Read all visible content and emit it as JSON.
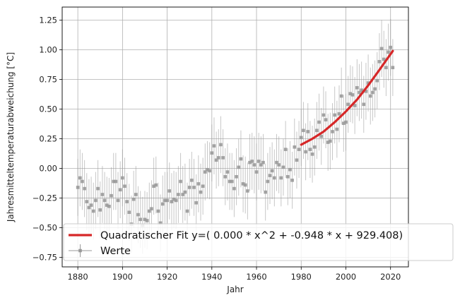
{
  "chart_data": {
    "type": "line",
    "title": "",
    "xlabel": "Jahr",
    "ylabel": "Jahresmitteltemperaturabweichung [°C]",
    "xlim": [
      1873,
      2028
    ],
    "ylim": [
      -0.83,
      1.36
    ],
    "xticks": [
      1880,
      1900,
      1920,
      1940,
      1960,
      1980,
      2000,
      2020
    ],
    "xtick_labels": [
      "1880",
      "1900",
      "1920",
      "1940",
      "1960",
      "1980",
      "2000",
      "2020"
    ],
    "yticks": [
      -0.75,
      -0.5,
      -0.25,
      0.0,
      0.25,
      0.5,
      0.75,
      1.0,
      1.25
    ],
    "ytick_labels": [
      "−0.75",
      "−0.50",
      "−0.25",
      "0.00",
      "0.25",
      "0.50",
      "0.75",
      "1.00",
      "1.25"
    ],
    "grid": true,
    "legend_position": "lower-right",
    "series": [
      {
        "name": "Werte",
        "kind": "errorbar",
        "color": "#999999",
        "error": 0.24,
        "x": [
          1880,
          1881,
          1882,
          1883,
          1884,
          1885,
          1886,
          1887,
          1888,
          1889,
          1890,
          1891,
          1892,
          1893,
          1894,
          1895,
          1896,
          1897,
          1898,
          1899,
          1900,
          1901,
          1902,
          1903,
          1904,
          1905,
          1906,
          1907,
          1908,
          1909,
          1910,
          1911,
          1912,
          1913,
          1914,
          1915,
          1916,
          1917,
          1918,
          1919,
          1920,
          1921,
          1922,
          1923,
          1924,
          1925,
          1926,
          1927,
          1928,
          1929,
          1930,
          1931,
          1932,
          1933,
          1934,
          1935,
          1936,
          1937,
          1938,
          1939,
          1940,
          1941,
          1942,
          1943,
          1944,
          1945,
          1946,
          1947,
          1948,
          1949,
          1950,
          1951,
          1952,
          1953,
          1954,
          1955,
          1956,
          1957,
          1958,
          1959,
          1960,
          1961,
          1962,
          1963,
          1964,
          1965,
          1966,
          1967,
          1968,
          1969,
          1970,
          1971,
          1972,
          1973,
          1974,
          1975,
          1976,
          1977,
          1978,
          1979,
          1980,
          1981,
          1982,
          1983,
          1984,
          1985,
          1986,
          1987,
          1988,
          1989,
          1990,
          1991,
          1992,
          1993,
          1994,
          1995,
          1996,
          1997,
          1998,
          1999,
          2000,
          2001,
          2002,
          2003,
          2004,
          2005,
          2006,
          2007,
          2008,
          2009,
          2010,
          2011,
          2012,
          2013,
          2014,
          2015,
          2016,
          2017,
          2018,
          2019,
          2020,
          2021
        ],
        "y": [
          -0.16,
          -0.08,
          -0.11,
          -0.17,
          -0.28,
          -0.33,
          -0.31,
          -0.36,
          -0.27,
          -0.17,
          -0.35,
          -0.22,
          -0.27,
          -0.31,
          -0.32,
          -0.23,
          -0.11,
          -0.11,
          -0.27,
          -0.18,
          -0.08,
          -0.15,
          -0.28,
          -0.37,
          -0.47,
          -0.26,
          -0.22,
          -0.39,
          -0.43,
          -0.48,
          -0.43,
          -0.44,
          -0.36,
          -0.34,
          -0.15,
          -0.14,
          -0.36,
          -0.46,
          -0.3,
          -0.27,
          -0.27,
          -0.19,
          -0.28,
          -0.26,
          -0.27,
          -0.22,
          -0.11,
          -0.22,
          -0.2,
          -0.36,
          -0.16,
          -0.1,
          -0.16,
          -0.29,
          -0.13,
          -0.2,
          -0.15,
          -0.03,
          -0.01,
          -0.02,
          0.13,
          0.19,
          0.07,
          0.09,
          0.2,
          0.09,
          -0.07,
          -0.03,
          -0.11,
          -0.11,
          -0.17,
          -0.07,
          0.01,
          0.08,
          -0.13,
          -0.14,
          -0.19,
          0.05,
          0.06,
          0.03,
          -0.03,
          0.06,
          0.03,
          0.05,
          -0.2,
          -0.11,
          -0.06,
          -0.02,
          -0.08,
          0.05,
          0.03,
          -0.08,
          0.01,
          0.16,
          -0.07,
          -0.01,
          -0.1,
          0.18,
          0.07,
          0.16,
          0.26,
          0.32,
          0.14,
          0.31,
          0.16,
          0.12,
          0.18,
          0.32,
          0.39,
          0.27,
          0.45,
          0.41,
          0.22,
          0.23,
          0.31,
          0.45,
          0.33,
          0.46,
          0.61,
          0.38,
          0.39,
          0.54,
          0.63,
          0.62,
          0.53,
          0.68,
          0.64,
          0.66,
          0.54,
          0.65,
          0.72,
          0.61,
          0.64,
          0.67,
          0.74,
          0.9,
          1.01,
          0.92,
          0.85,
          0.98,
          1.02,
          0.85
        ]
      },
      {
        "name": "Quadratischer Fit y=( 0.000 * x^2 + -0.948 * x + 929.408)",
        "kind": "fit",
        "color": "#d62728",
        "x": [
          1980,
          1985,
          1990,
          1995,
          2000,
          2005,
          2010,
          2015,
          2021
        ],
        "y": [
          0.2,
          0.25,
          0.31,
          0.39,
          0.48,
          0.58,
          0.7,
          0.83,
          0.99
        ]
      }
    ]
  }
}
